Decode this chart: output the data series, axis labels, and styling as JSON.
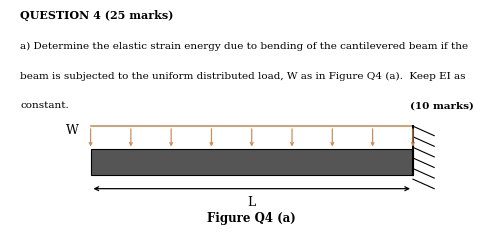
{
  "title_line1": "QUESTION 4 (25 marks)",
  "body_line1": "a) Determine the elastic strain energy due to bending of the cantilevered beam if the",
  "body_line2": "beam is subjected to the uniform distributed load, W as in Figure Q4 (a).  Keep EI as",
  "body_line3": "constant.",
  "marks_text": "(10 marks)",
  "figure_caption": "Figure Q4 (a)",
  "dim_label": "L",
  "load_label": "W",
  "beam_color": "#555555",
  "load_color": "#C8915A",
  "text_color": "#000000",
  "bg_color": "#ffffff",
  "num_arrows": 9
}
